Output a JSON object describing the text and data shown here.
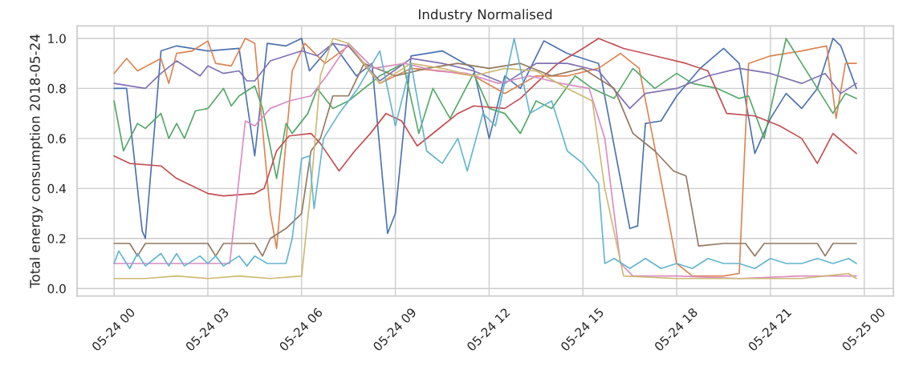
{
  "chart_data": {
    "type": "line",
    "title": "Industry Normalised",
    "ylabel": "Total energy consumption 2018-05-24",
    "xlim": [
      "2018-05-23T22:49",
      "2018-05-25T00:56"
    ],
    "ylim": [
      -0.03,
      1.05
    ],
    "xticks": [
      {
        "value": "2018-05-24T00:00",
        "label": "05-24 00"
      },
      {
        "value": "2018-05-24T03:00",
        "label": "05-24 03"
      },
      {
        "value": "2018-05-24T06:00",
        "label": "05-24 06"
      },
      {
        "value": "2018-05-24T09:00",
        "label": "05-24 09"
      },
      {
        "value": "2018-05-24T12:00",
        "label": "05-24 12"
      },
      {
        "value": "2018-05-24T15:00",
        "label": "05-24 15"
      },
      {
        "value": "2018-05-24T18:00",
        "label": "05-24 18"
      },
      {
        "value": "2018-05-24T21:00",
        "label": "05-24 21"
      },
      {
        "value": "2018-05-25T00:00",
        "label": "05-25 00"
      }
    ],
    "yticks": [
      {
        "value": 0,
        "label": "0.0"
      },
      {
        "value": 0.2,
        "label": "0.2"
      },
      {
        "value": 0.4,
        "label": "0.4"
      },
      {
        "value": 0.6,
        "label": "0.6"
      },
      {
        "value": 0.8,
        "label": "0.8"
      },
      {
        "value": 1,
        "label": "1.0"
      }
    ],
    "grid": true,
    "marker": "none",
    "line_style": "solid",
    "series": [
      {
        "color": "#4c72b0",
        "x": [
          "2018-05-24T00:00",
          "2018-05-24T00:24",
          "2018-05-24T00:54",
          "2018-05-24T01:00",
          "2018-05-24T01:30",
          "2018-05-24T02:00",
          "2018-05-24T03:00",
          "2018-05-24T04:00",
          "2018-05-24T04:30",
          "2018-05-24T04:54",
          "2018-05-24T05:30",
          "2018-05-24T06:00",
          "2018-05-24T06:15",
          "2018-05-24T07:00",
          "2018-05-24T07:45",
          "2018-05-24T08:15",
          "2018-05-24T08:45",
          "2018-05-24T09:00",
          "2018-05-24T09:30",
          "2018-05-24T10:30",
          "2018-05-24T11:30",
          "2018-05-24T12:00",
          "2018-05-24T12:30",
          "2018-05-24T13:00",
          "2018-05-24T13:45",
          "2018-05-24T14:30",
          "2018-05-24T15:30",
          "2018-05-24T16:30",
          "2018-05-24T16:45",
          "2018-05-24T17:00",
          "2018-05-24T17:30",
          "2018-05-24T18:00",
          "2018-05-24T18:45",
          "2018-05-24T19:30",
          "2018-05-24T20:00",
          "2018-05-24T20:30",
          "2018-05-24T21:00",
          "2018-05-24T21:30",
          "2018-05-24T22:00",
          "2018-05-24T22:30",
          "2018-05-24T23:00",
          "2018-05-24T23:15",
          "2018-05-24T23:45"
        ],
        "values": [
          0.8,
          0.8,
          0.23,
          0.2,
          0.95,
          0.97,
          0.95,
          0.96,
          0.53,
          0.98,
          0.97,
          1.0,
          0.87,
          0.98,
          0.85,
          0.9,
          0.22,
          0.3,
          0.93,
          0.95,
          0.88,
          0.6,
          0.85,
          0.8,
          0.99,
          0.94,
          0.9,
          0.24,
          0.25,
          0.66,
          0.67,
          0.77,
          0.88,
          0.96,
          0.9,
          0.54,
          0.68,
          0.78,
          0.72,
          0.8,
          1.0,
          0.97,
          0.8
        ]
      },
      {
        "color": "#dd8452",
        "x": [
          "2018-05-24T00:00",
          "2018-05-24T00:24",
          "2018-05-24T00:45",
          "2018-05-24T01:30",
          "2018-05-24T01:45",
          "2018-05-24T02:00",
          "2018-05-24T02:30",
          "2018-05-24T03:00",
          "2018-05-24T03:15",
          "2018-05-24T03:45",
          "2018-05-24T04:12",
          "2018-05-24T04:30",
          "2018-05-24T05:00",
          "2018-05-24T05:12",
          "2018-05-24T05:42",
          "2018-05-24T06:06",
          "2018-05-24T06:45",
          "2018-05-24T07:30",
          "2018-05-24T08:30",
          "2018-05-24T09:30",
          "2018-05-24T10:30",
          "2018-05-24T11:30",
          "2018-05-24T12:30",
          "2018-05-24T13:30",
          "2018-05-24T14:30",
          "2018-05-24T15:30",
          "2018-05-24T16:12",
          "2018-05-24T16:48",
          "2018-05-24T17:24",
          "2018-05-24T18:00",
          "2018-05-24T18:30",
          "2018-05-24T19:30",
          "2018-05-24T20:00",
          "2018-05-24T20:18",
          "2018-05-24T21:00",
          "2018-05-24T22:00",
          "2018-05-24T22:48",
          "2018-05-24T23:06",
          "2018-05-24T23:24",
          "2018-05-24T23:45"
        ],
        "values": [
          0.86,
          0.92,
          0.87,
          0.92,
          0.82,
          0.94,
          0.95,
          0.99,
          0.9,
          0.89,
          1.0,
          0.98,
          0.3,
          0.16,
          0.87,
          0.98,
          0.9,
          0.97,
          0.82,
          0.88,
          0.87,
          0.85,
          0.78,
          0.85,
          0.85,
          0.88,
          0.94,
          0.88,
          0.5,
          0.1,
          0.05,
          0.05,
          0.06,
          0.9,
          0.93,
          0.95,
          0.97,
          0.68,
          0.9,
          0.9
        ]
      },
      {
        "color": "#55a868",
        "x": [
          "2018-05-24T00:00",
          "2018-05-24T00:18",
          "2018-05-24T00:45",
          "2018-05-24T01:00",
          "2018-05-24T01:30",
          "2018-05-24T01:45",
          "2018-05-24T02:00",
          "2018-05-24T02:15",
          "2018-05-24T02:36",
          "2018-05-24T03:00",
          "2018-05-24T03:30",
          "2018-05-24T03:45",
          "2018-05-24T04:00",
          "2018-05-24T04:30",
          "2018-05-24T04:45",
          "2018-05-24T05:12",
          "2018-05-24T05:30",
          "2018-05-24T05:42",
          "2018-05-24T06:12",
          "2018-05-24T06:30",
          "2018-05-24T07:00",
          "2018-05-24T07:30",
          "2018-05-24T08:30",
          "2018-05-24T09:15",
          "2018-05-24T09:45",
          "2018-05-24T10:12",
          "2018-05-24T10:45",
          "2018-05-24T11:30",
          "2018-05-24T12:00",
          "2018-05-24T12:30",
          "2018-05-24T13:00",
          "2018-05-24T13:30",
          "2018-05-24T14:00",
          "2018-05-24T14:45",
          "2018-05-24T15:18",
          "2018-05-24T16:00",
          "2018-05-24T16:36",
          "2018-05-24T17:18",
          "2018-05-24T18:00",
          "2018-05-24T18:30",
          "2018-05-24T19:18",
          "2018-05-24T20:00",
          "2018-05-24T20:18",
          "2018-05-24T20:48",
          "2018-05-24T21:30",
          "2018-05-24T22:00",
          "2018-05-24T22:30",
          "2018-05-24T23:00",
          "2018-05-24T23:24",
          "2018-05-24T23:45"
        ],
        "values": [
          0.75,
          0.55,
          0.66,
          0.64,
          0.7,
          0.6,
          0.66,
          0.6,
          0.71,
          0.72,
          0.8,
          0.73,
          0.77,
          0.81,
          0.72,
          0.44,
          0.66,
          0.62,
          0.7,
          0.8,
          0.72,
          0.75,
          0.85,
          0.9,
          0.62,
          0.8,
          0.68,
          0.86,
          0.72,
          0.7,
          0.62,
          0.75,
          0.72,
          0.85,
          0.8,
          0.76,
          0.88,
          0.8,
          0.86,
          0.82,
          0.8,
          0.76,
          0.77,
          0.6,
          1.0,
          0.9,
          0.8,
          0.7,
          0.78,
          0.76
        ]
      },
      {
        "color": "#c44e52",
        "x": [
          "2018-05-24T00:00",
          "2018-05-24T00:30",
          "2018-05-24T01:30",
          "2018-05-24T02:00",
          "2018-05-24T03:00",
          "2018-05-24T03:30",
          "2018-05-24T04:30",
          "2018-05-24T04:48",
          "2018-05-24T05:12",
          "2018-05-24T05:36",
          "2018-05-24T06:18",
          "2018-05-24T06:36",
          "2018-05-24T07:12",
          "2018-05-24T07:42",
          "2018-05-24T08:12",
          "2018-05-24T08:42",
          "2018-05-24T09:12",
          "2018-05-24T09:42",
          "2018-05-24T10:18",
          "2018-05-24T11:00",
          "2018-05-24T11:30",
          "2018-05-24T12:30",
          "2018-05-24T13:00",
          "2018-05-24T13:30",
          "2018-05-24T14:12",
          "2018-05-24T15:00",
          "2018-05-24T15:30",
          "2018-05-24T16:18",
          "2018-05-24T17:18",
          "2018-05-24T18:18",
          "2018-05-24T19:00",
          "2018-05-24T19:36",
          "2018-05-24T20:30",
          "2018-05-24T21:18",
          "2018-05-24T22:00",
          "2018-05-24T22:30",
          "2018-05-24T23:00",
          "2018-05-24T23:45"
        ],
        "values": [
          0.53,
          0.5,
          0.49,
          0.44,
          0.38,
          0.37,
          0.38,
          0.4,
          0.55,
          0.61,
          0.62,
          0.58,
          0.47,
          0.55,
          0.62,
          0.7,
          0.67,
          0.57,
          0.63,
          0.7,
          0.73,
          0.72,
          0.76,
          0.82,
          0.9,
          0.96,
          1.0,
          0.96,
          0.93,
          0.9,
          0.87,
          0.7,
          0.69,
          0.65,
          0.6,
          0.5,
          0.62,
          0.54
        ]
      },
      {
        "color": "#8172b3",
        "x": [
          "2018-05-24T00:00",
          "2018-05-24T01:00",
          "2018-05-24T01:30",
          "2018-05-24T02:00",
          "2018-05-24T02:45",
          "2018-05-24T03:00",
          "2018-05-24T03:30",
          "2018-05-24T04:00",
          "2018-05-24T04:15",
          "2018-05-24T04:30",
          "2018-05-24T05:00",
          "2018-05-24T05:30",
          "2018-05-24T06:00",
          "2018-05-24T06:30",
          "2018-05-24T07:00",
          "2018-05-24T07:30",
          "2018-05-24T08:30",
          "2018-05-24T09:30",
          "2018-05-24T10:30",
          "2018-05-24T11:30",
          "2018-05-24T12:30",
          "2018-05-24T13:30",
          "2018-05-24T14:30",
          "2018-05-24T15:30",
          "2018-05-24T16:30",
          "2018-05-24T17:00",
          "2018-05-24T18:00",
          "2018-05-24T19:00",
          "2018-05-24T20:00",
          "2018-05-24T21:00",
          "2018-05-24T22:00",
          "2018-05-24T22:45",
          "2018-05-24T23:15",
          "2018-05-24T23:45"
        ],
        "values": [
          0.82,
          0.8,
          0.86,
          0.91,
          0.85,
          0.89,
          0.86,
          0.87,
          0.83,
          0.83,
          0.91,
          0.93,
          0.95,
          0.93,
          0.98,
          0.97,
          0.83,
          0.92,
          0.9,
          0.87,
          0.82,
          0.9,
          0.9,
          0.87,
          0.72,
          0.78,
          0.8,
          0.85,
          0.88,
          0.86,
          0.82,
          0.86,
          0.78,
          0.82
        ]
      },
      {
        "color": "#937860",
        "x": [
          "2018-05-24T00:00",
          "2018-05-24T00:30",
          "2018-05-24T00:45",
          "2018-05-24T01:00",
          "2018-05-24T03:00",
          "2018-05-24T03:15",
          "2018-05-24T03:30",
          "2018-05-24T04:30",
          "2018-05-24T04:45",
          "2018-05-24T05:00",
          "2018-05-24T05:30",
          "2018-05-24T06:00",
          "2018-05-24T06:18",
          "2018-05-24T06:36",
          "2018-05-24T07:00",
          "2018-05-24T07:30",
          "2018-05-24T08:00",
          "2018-05-24T09:00",
          "2018-05-24T10:00",
          "2018-05-24T11:00",
          "2018-05-24T12:00",
          "2018-05-24T13:00",
          "2018-05-24T14:00",
          "2018-05-24T15:00",
          "2018-05-24T16:00",
          "2018-05-24T16:36",
          "2018-05-24T17:18",
          "2018-05-24T17:54",
          "2018-05-24T18:18",
          "2018-05-24T18:42",
          "2018-05-24T19:30",
          "2018-05-24T20:12",
          "2018-05-24T20:30",
          "2018-05-24T20:48",
          "2018-05-24T22:30",
          "2018-05-24T22:45",
          "2018-05-24T23:00",
          "2018-05-24T23:45"
        ],
        "values": [
          0.18,
          0.18,
          0.13,
          0.18,
          0.18,
          0.13,
          0.18,
          0.18,
          0.13,
          0.2,
          0.24,
          0.3,
          0.55,
          0.6,
          0.77,
          0.77,
          0.9,
          0.85,
          0.88,
          0.9,
          0.88,
          0.9,
          0.85,
          0.88,
          0.8,
          0.62,
          0.55,
          0.47,
          0.45,
          0.17,
          0.18,
          0.18,
          0.13,
          0.18,
          0.18,
          0.13,
          0.18,
          0.18
        ]
      },
      {
        "color": "#da8bc3",
        "x": [
          "2018-05-24T00:00",
          "2018-05-24T03:42",
          "2018-05-24T04:12",
          "2018-05-24T04:30",
          "2018-05-24T05:00",
          "2018-05-24T05:36",
          "2018-05-24T06:18",
          "2018-05-24T06:48",
          "2018-05-24T07:30",
          "2018-05-24T08:18",
          "2018-05-24T09:18",
          "2018-05-24T10:18",
          "2018-05-24T11:18",
          "2018-05-24T12:18",
          "2018-05-24T13:18",
          "2018-05-24T14:18",
          "2018-05-24T15:12",
          "2018-05-24T15:42",
          "2018-05-24T16:12",
          "2018-05-24T16:36",
          "2018-05-24T18:00",
          "2018-05-24T20:00",
          "2018-05-24T22:00",
          "2018-05-24T23:45"
        ],
        "values": [
          0.1,
          0.1,
          0.67,
          0.65,
          0.72,
          0.75,
          0.77,
          0.85,
          0.98,
          0.88,
          0.9,
          0.87,
          0.86,
          0.82,
          0.85,
          0.82,
          0.8,
          0.6,
          0.1,
          0.05,
          0.05,
          0.04,
          0.05,
          0.05
        ]
      },
      {
        "color": "#ccb974",
        "x": [
          "2018-05-24T00:00",
          "2018-05-24T01:00",
          "2018-05-24T02:00",
          "2018-05-24T03:00",
          "2018-05-24T04:00",
          "2018-05-24T05:00",
          "2018-05-24T06:00",
          "2018-05-24T06:18",
          "2018-05-24T06:36",
          "2018-05-24T07:00",
          "2018-05-24T07:30",
          "2018-05-24T08:30",
          "2018-05-24T09:30",
          "2018-05-24T10:30",
          "2018-05-24T11:30",
          "2018-05-24T12:30",
          "2018-05-24T13:30",
          "2018-05-24T14:30",
          "2018-05-24T15:18",
          "2018-05-24T15:42",
          "2018-05-24T16:18",
          "2018-05-24T18:00",
          "2018-05-24T20:00",
          "2018-05-24T22:00",
          "2018-05-24T23:30",
          "2018-05-24T23:45"
        ],
        "values": [
          0.04,
          0.04,
          0.05,
          0.04,
          0.05,
          0.04,
          0.05,
          0.4,
          0.85,
          1.0,
          0.98,
          0.82,
          0.9,
          0.88,
          0.85,
          0.88,
          0.87,
          0.8,
          0.75,
          0.4,
          0.05,
          0.04,
          0.04,
          0.04,
          0.06,
          0.04
        ]
      },
      {
        "color": "#64b5cd",
        "x": [
          "2018-05-24T00:00",
          "2018-05-24T00:09",
          "2018-05-24T00:30",
          "2018-05-24T00:45",
          "2018-05-24T01:00",
          "2018-05-24T01:30",
          "2018-05-24T01:45",
          "2018-05-24T02:00",
          "2018-05-24T02:15",
          "2018-05-24T02:45",
          "2018-05-24T03:00",
          "2018-05-24T03:15",
          "2018-05-24T03:30",
          "2018-05-24T04:00",
          "2018-05-24T04:15",
          "2018-05-24T04:30",
          "2018-05-24T04:54",
          "2018-05-24T05:30",
          "2018-05-24T05:42",
          "2018-05-24T06:00",
          "2018-05-24T06:15",
          "2018-05-24T06:24",
          "2018-05-24T06:42",
          "2018-05-24T07:12",
          "2018-05-24T07:48",
          "2018-05-24T08:30",
          "2018-05-24T09:00",
          "2018-05-24T09:30",
          "2018-05-24T10:00",
          "2018-05-24T10:30",
          "2018-05-24T11:00",
          "2018-05-24T11:18",
          "2018-05-24T11:48",
          "2018-05-24T12:12",
          "2018-05-24T12:48",
          "2018-05-24T13:18",
          "2018-05-24T14:00",
          "2018-05-24T14:30",
          "2018-05-24T15:00",
          "2018-05-24T15:30",
          "2018-05-24T15:42",
          "2018-05-24T16:00",
          "2018-05-24T16:30",
          "2018-05-24T17:00",
          "2018-05-24T17:30",
          "2018-05-24T18:00",
          "2018-05-24T18:30",
          "2018-05-24T19:00",
          "2018-05-24T19:30",
          "2018-05-24T20:00",
          "2018-05-24T20:30",
          "2018-05-24T21:00",
          "2018-05-24T21:30",
          "2018-05-24T22:00",
          "2018-05-24T22:30",
          "2018-05-24T23:00",
          "2018-05-24T23:30",
          "2018-05-24T23:45"
        ],
        "values": [
          0.1,
          0.15,
          0.08,
          0.14,
          0.09,
          0.14,
          0.09,
          0.14,
          0.09,
          0.13,
          0.1,
          0.13,
          0.09,
          0.13,
          0.09,
          0.13,
          0.1,
          0.1,
          0.2,
          0.52,
          0.53,
          0.32,
          0.6,
          0.7,
          0.8,
          0.95,
          0.65,
          0.9,
          0.55,
          0.5,
          0.6,
          0.47,
          0.7,
          0.65,
          1.0,
          0.7,
          0.75,
          0.55,
          0.5,
          0.42,
          0.1,
          0.12,
          0.08,
          0.12,
          0.08,
          0.1,
          0.08,
          0.12,
          0.1,
          0.1,
          0.08,
          0.12,
          0.1,
          0.1,
          0.12,
          0.1,
          0.12,
          0.1
        ]
      }
    ]
  }
}
